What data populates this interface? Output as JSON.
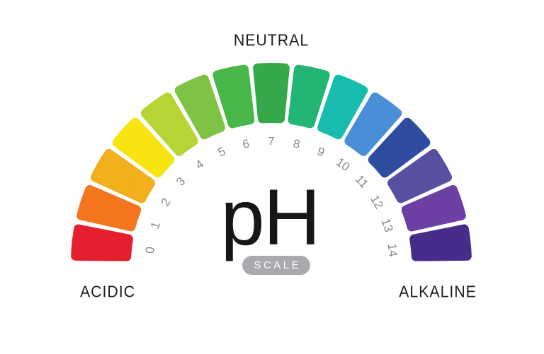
{
  "labels": {
    "top": "NEUTRAL",
    "bottom_left": "ACIDIC",
    "bottom_right": "ALKALINE"
  },
  "center": {
    "symbol": "pH",
    "badge": "SCALE"
  },
  "styles": {
    "background": "#ffffff",
    "label_color": "#1d1d1b",
    "number_color": "#87898c",
    "badge_bg": "#a8aaad",
    "badge_text": "#ffffff",
    "ph_color": "#161616"
  },
  "chart_data": {
    "type": "gauge",
    "title": "pH SCALE",
    "range": [
      0,
      14
    ],
    "arc_degrees": 180,
    "zones": [
      "ACIDIC",
      "NEUTRAL",
      "ALKALINE"
    ],
    "segments": [
      {
        "ph": 0,
        "color": "#e5202e"
      },
      {
        "ph": 1,
        "color": "#f4771f"
      },
      {
        "ph": 2,
        "color": "#f2b01c"
      },
      {
        "ph": 3,
        "color": "#f8e410"
      },
      {
        "ph": 4,
        "color": "#b6d433"
      },
      {
        "ph": 5,
        "color": "#7fc344"
      },
      {
        "ph": 6,
        "color": "#47b749"
      },
      {
        "ph": 7,
        "color": "#35a84b"
      },
      {
        "ph": 8,
        "color": "#23b573"
      },
      {
        "ph": 9,
        "color": "#18bcae"
      },
      {
        "ph": 10,
        "color": "#4a8ed8"
      },
      {
        "ph": 11,
        "color": "#2e4da1"
      },
      {
        "ph": 12,
        "color": "#574fa0"
      },
      {
        "ph": 13,
        "color": "#6c40a2"
      },
      {
        "ph": 14,
        "color": "#472d89"
      }
    ]
  }
}
